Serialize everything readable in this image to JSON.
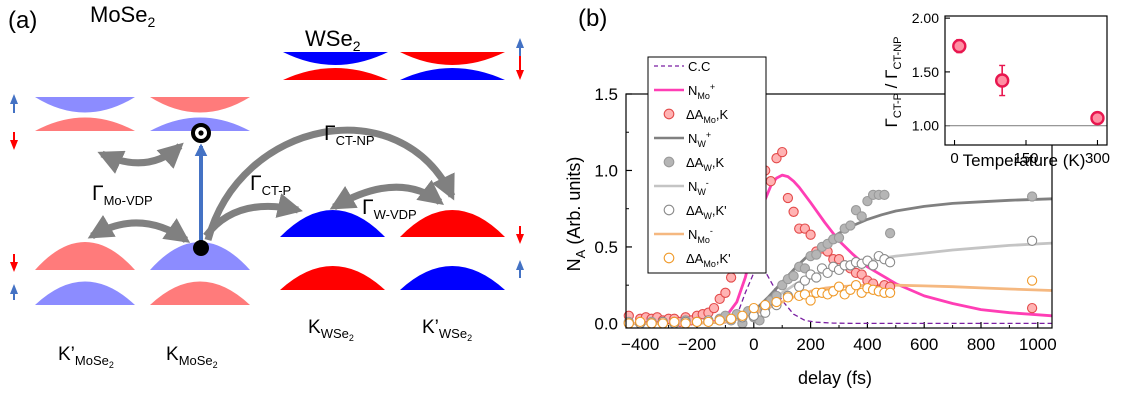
{
  "panel_a": {
    "panel_label": "(a)",
    "materials": {
      "mose2": {
        "base": "MoSe",
        "sub": "2"
      },
      "wse2": {
        "base": "WSe",
        "sub": "2"
      }
    },
    "valleys": {
      "kp_mose2": {
        "base": "K’",
        "sub": "MoSe",
        "subsub": "2"
      },
      "k_mose2": {
        "base": "K",
        "sub": "MoSe",
        "subsub": "2"
      },
      "k_wse2": {
        "base": "K",
        "sub": "WSe",
        "subsub": "2"
      },
      "kp_wse2": {
        "base": "K’",
        "sub": "WSe",
        "subsub": "2"
      }
    },
    "rates": {
      "ct_np": {
        "base": "Γ",
        "sub": "CT-NP"
      },
      "ct_p": {
        "base": "Γ",
        "sub": "CT-P"
      },
      "mo_vdp": {
        "base": "Γ",
        "sub": "Mo-VDP"
      },
      "w_vdp": {
        "base": "Γ",
        "sub": "W-VDP"
      }
    },
    "colors": {
      "spin_up": "#ff7b7b",
      "spin_down": "#7b7bff",
      "w_red": "#ff0000",
      "w_blue": "#0000ff",
      "arrow": "#808080",
      "excite": "#4472c4"
    },
    "icons": [
      "spin-up-arrow-icon",
      "spin-down-arrow-icon",
      "electron-dot-icon",
      "hole-ring-icon"
    ]
  },
  "panel_b": {
    "panel_label": "(b)",
    "legend": [
      {
        "base": "C.C",
        "sub": "",
        "sup": "",
        "tail": "",
        "kind": "dashed",
        "color": "#7a1fa2"
      },
      {
        "base": "N",
        "sub": "Mo",
        "sup": "+",
        "tail": "",
        "kind": "line",
        "color": "#ff3eb5"
      },
      {
        "base": "ΔA",
        "sub": "Mo",
        "sup": "",
        "tail": ",K",
        "kind": "marker",
        "color": "#e34a4a",
        "fill": "#ffb3b3"
      },
      {
        "base": "N",
        "sub": "W",
        "sup": "+",
        "tail": "",
        "kind": "line",
        "color": "#808080"
      },
      {
        "base": "ΔA",
        "sub": "W",
        "sup": "",
        "tail": ",K",
        "kind": "marker",
        "color": "#9a9a9a",
        "fill": "#b5b5b5"
      },
      {
        "base": "N",
        "sub": "W",
        "sup": "-",
        "tail": "",
        "kind": "line",
        "color": "#c4c4c4"
      },
      {
        "base": "ΔA",
        "sub": "W",
        "sup": "",
        "tail": ",K'",
        "kind": "marker",
        "color": "#8a8a8a",
        "fill": "#ffffff"
      },
      {
        "base": "N",
        "sub": "Mo",
        "sup": "-",
        "tail": "",
        "kind": "line",
        "color": "#f5b880"
      },
      {
        "base": "ΔA",
        "sub": "Mo",
        "sup": "",
        "tail": ",K'",
        "kind": "marker",
        "color": "#f09a2a",
        "fill": "#ffffff"
      }
    ],
    "inset_ylabel": {
      "base": "Γ",
      "sub1": "CT-P",
      "mid": " / Γ",
      "sub2": "CT-NP"
    }
  },
  "chart_data": [
    {
      "type": "scatter",
      "title": "",
      "xlabel": "delay  (fs)",
      "ylabel": {
        "base": "N",
        "sub": "A",
        "rest": "  (Arb. units)"
      },
      "xlim": [
        -450,
        1050
      ],
      "ylim": [
        -0.03,
        1.5
      ],
      "xticks": [
        -400,
        -200,
        0,
        200,
        400,
        600,
        800,
        1000
      ],
      "yticks": [
        0.0,
        0.5,
        1.0,
        1.5
      ],
      "ytick_labels": [
        "0.0",
        "0.5",
        "1.0",
        "1.5"
      ],
      "grid": false,
      "legend_position": "upper-left",
      "curves": [
        {
          "name": "C.C",
          "color": "#7a1fa2",
          "dashed": true,
          "x": [
            -450,
            -100,
            -60,
            -30,
            0,
            20,
            40,
            70,
            100,
            140,
            180,
            220,
            280,
            350,
            450,
            1050
          ],
          "y": [
            0,
            0.003,
            0.05,
            0.2,
            0.33,
            0.36,
            0.34,
            0.24,
            0.15,
            0.06,
            0.02,
            0.008,
            0.002,
            0,
            0,
            0
          ]
        },
        {
          "name": "N_Mo+",
          "color": "#ff3eb5",
          "dashed": false,
          "x": [
            -450,
            -150,
            -100,
            -60,
            -30,
            0,
            20,
            40,
            60,
            80,
            100,
            120,
            140,
            160,
            200,
            250,
            300,
            350,
            400,
            500,
            600,
            700,
            800,
            900,
            1050
          ],
          "y": [
            0,
            0.005,
            0.04,
            0.14,
            0.3,
            0.52,
            0.68,
            0.81,
            0.9,
            0.95,
            0.97,
            0.96,
            0.93,
            0.89,
            0.79,
            0.66,
            0.54,
            0.45,
            0.37,
            0.26,
            0.18,
            0.13,
            0.09,
            0.07,
            0.05
          ]
        },
        {
          "name": "N_W+",
          "color": "#808080",
          "dashed": false,
          "x": [
            -450,
            -200,
            -100,
            -50,
            0,
            50,
            100,
            150,
            200,
            250,
            300,
            350,
            400,
            450,
            500,
            600,
            700,
            800,
            900,
            1050
          ],
          "y": [
            0,
            0.002,
            0.01,
            0.03,
            0.08,
            0.17,
            0.27,
            0.37,
            0.46,
            0.53,
            0.59,
            0.64,
            0.68,
            0.71,
            0.735,
            0.765,
            0.785,
            0.795,
            0.805,
            0.815
          ]
        },
        {
          "name": "N_W-",
          "color": "#c4c4c4",
          "dashed": false,
          "x": [
            -450,
            -200,
            -100,
            -50,
            0,
            50,
            100,
            150,
            200,
            250,
            300,
            400,
            500,
            600,
            700,
            800,
            900,
            1050
          ],
          "y": [
            0,
            0.002,
            0.01,
            0.03,
            0.07,
            0.13,
            0.2,
            0.26,
            0.31,
            0.34,
            0.37,
            0.41,
            0.44,
            0.46,
            0.48,
            0.495,
            0.51,
            0.525
          ]
        },
        {
          "name": "N_Mo-",
          "color": "#f5b880",
          "dashed": false,
          "x": [
            -450,
            -200,
            -100,
            -50,
            0,
            50,
            100,
            150,
            200,
            250,
            300,
            400,
            500,
            600,
            700,
            800,
            900,
            1050
          ],
          "y": [
            0,
            0.002,
            0.01,
            0.03,
            0.06,
            0.1,
            0.14,
            0.18,
            0.21,
            0.23,
            0.24,
            0.25,
            0.25,
            0.245,
            0.24,
            0.232,
            0.225,
            0.215
          ]
        }
      ],
      "markers": [
        {
          "name": "ΔA_Mo,K",
          "stroke": "#e34a4a",
          "fill": "#ffb3b3",
          "x": [
            -440,
            -400,
            -380,
            -360,
            -340,
            -320,
            -300,
            -280,
            -260,
            -240,
            -220,
            -200,
            -180,
            -160,
            -140,
            -120,
            -100,
            -80,
            -60,
            -40,
            -20,
            0,
            20,
            40,
            60,
            80,
            100,
            120,
            140,
            160,
            180,
            200,
            220,
            240,
            260,
            280,
            300,
            320,
            340,
            360,
            380,
            400,
            420,
            440,
            460,
            480,
            980
          ],
          "y": [
            0.05,
            0.03,
            0.04,
            0.03,
            0.04,
            0.02,
            0.03,
            0.03,
            0.01,
            0.04,
            0.02,
            0.05,
            0.06,
            0.07,
            0.1,
            0.16,
            0.2,
            0.3,
            0.39,
            0.52,
            0.71,
            0.89,
            0.95,
            1.0,
            0.93,
            1.08,
            1.12,
            0.82,
            0.73,
            0.62,
            0.62,
            0.58,
            0.47,
            0.49,
            0.47,
            0.42,
            0.42,
            0.38,
            0.36,
            0.33,
            0.32,
            0.28,
            0.26,
            0.22,
            0.25,
            0.24,
            0.1
          ]
        },
        {
          "name": "ΔA_W,K",
          "stroke": "#9a9a9a",
          "fill": "#b5b5b5",
          "x": [
            -440,
            -400,
            -360,
            -320,
            -280,
            -240,
            -200,
            -160,
            -120,
            -100,
            -80,
            -60,
            -40,
            -20,
            0,
            20,
            40,
            60,
            80,
            100,
            120,
            140,
            160,
            180,
            200,
            220,
            240,
            260,
            280,
            300,
            320,
            340,
            360,
            380,
            400,
            420,
            440,
            460,
            480,
            980
          ],
          "y": [
            0.01,
            0.0,
            0.01,
            0.0,
            0.01,
            0.02,
            0.01,
            0.01,
            0.03,
            0.05,
            0.02,
            0.06,
            0.0,
            0.08,
            0.04,
            0.02,
            0.1,
            0.15,
            0.18,
            0.25,
            0.29,
            0.31,
            0.37,
            0.36,
            0.44,
            0.45,
            0.5,
            0.52,
            0.55,
            0.56,
            0.62,
            0.64,
            0.74,
            0.7,
            0.8,
            0.84,
            0.84,
            0.84,
            0.59,
            0.83
          ]
        },
        {
          "name": "ΔA_W,K'",
          "stroke": "#8a8a8a",
          "fill": "#ffffff",
          "x": [
            -440,
            -400,
            -360,
            -320,
            -280,
            -240,
            -200,
            -160,
            -120,
            -80,
            -40,
            0,
            40,
            80,
            120,
            160,
            180,
            200,
            220,
            240,
            260,
            280,
            300,
            320,
            340,
            360,
            380,
            400,
            420,
            440,
            460,
            480,
            980
          ],
          "y": [
            0.0,
            0.0,
            0.0,
            0.01,
            0.0,
            0.01,
            0.01,
            0.02,
            0.02,
            0.03,
            0.04,
            0.05,
            0.07,
            0.12,
            0.18,
            0.24,
            0.28,
            0.32,
            0.3,
            0.36,
            0.33,
            0.37,
            0.35,
            0.38,
            0.38,
            0.4,
            0.39,
            0.41,
            0.38,
            0.44,
            0.42,
            0.4,
            0.54
          ]
        },
        {
          "name": "ΔA_Mo,K'",
          "stroke": "#f09a2a",
          "fill": "#ffffff",
          "x": [
            -440,
            -400,
            -360,
            -320,
            -280,
            -240,
            -200,
            -160,
            -120,
            -80,
            -40,
            0,
            40,
            80,
            120,
            160,
            180,
            200,
            220,
            240,
            260,
            280,
            300,
            320,
            340,
            360,
            380,
            400,
            420,
            440,
            460,
            480,
            980
          ],
          "y": [
            0.0,
            0.01,
            0.0,
            0.0,
            0.01,
            0.0,
            0.01,
            0.01,
            0.02,
            0.03,
            0.05,
            0.1,
            0.12,
            0.14,
            0.17,
            0.18,
            0.19,
            0.15,
            0.2,
            0.2,
            0.19,
            0.21,
            0.24,
            0.19,
            0.22,
            0.25,
            0.2,
            0.23,
            0.22,
            0.21,
            0.2,
            0.2,
            0.28
          ]
        }
      ]
    },
    {
      "type": "scatter",
      "title": "",
      "xlabel": "Temperature (K)",
      "xlim": [
        -20,
        320
      ],
      "ylim": [
        0.82,
        2.02
      ],
      "xticks": [
        0,
        150,
        300
      ],
      "yticks": [
        1.0,
        1.5,
        2.0
      ],
      "ytick_labels": [
        "1.00",
        "1.50",
        "2.00"
      ],
      "reference_line": 1.0,
      "points": [
        {
          "x": 10,
          "y": 1.74,
          "err": 0.06
        },
        {
          "x": 100,
          "y": 1.42,
          "err": 0.14
        },
        {
          "x": 300,
          "y": 1.07,
          "err": 0.03
        }
      ],
      "marker_color": "#e8174f",
      "marker_fill": "#ff8fa3"
    }
  ]
}
